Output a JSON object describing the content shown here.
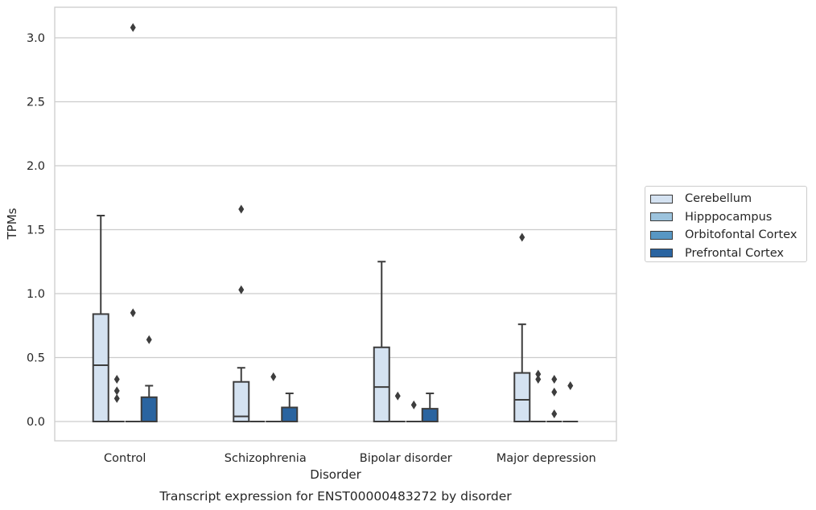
{
  "chart_data": {
    "type": "box",
    "caption": "Transcript expression for ENST00000483272 by disorder",
    "xlabel": "Disorder",
    "ylabel": "TPMs",
    "ylim": [
      -0.15,
      3.25
    ],
    "yticks": [
      "0.0",
      "0.5",
      "1.0",
      "1.5",
      "2.0",
      "2.5",
      "3.0"
    ],
    "grid": "horizontal",
    "legend_position": "right",
    "categories": [
      "Control",
      "Schizophrenia",
      "Bipolar disorder",
      "Major depression"
    ],
    "series": [
      {
        "name": "Cerebellum",
        "color": "#d4e2f1",
        "boxes": [
          {
            "q1": 0.0,
            "median": 0.44,
            "q3": 0.84,
            "whisker_low": 0.0,
            "whisker_high": 1.61,
            "outliers": []
          },
          {
            "q1": 0.0,
            "median": 0.04,
            "q3": 0.31,
            "whisker_low": 0.0,
            "whisker_high": 0.42,
            "outliers": [
              1.03,
              1.66
            ]
          },
          {
            "q1": 0.0,
            "median": 0.27,
            "q3": 0.58,
            "whisker_low": 0.0,
            "whisker_high": 1.25,
            "outliers": []
          },
          {
            "q1": 0.0,
            "median": 0.17,
            "q3": 0.38,
            "whisker_low": 0.0,
            "whisker_high": 0.76,
            "outliers": [
              1.44
            ]
          }
        ]
      },
      {
        "name": "Hipppocampus",
        "color": "#9cc3dd",
        "boxes": [
          {
            "q1": 0.0,
            "median": 0.0,
            "q3": 0.0,
            "whisker_low": 0.0,
            "whisker_high": 0.0,
            "outliers": [
              0.18,
              0.24,
              0.33
            ]
          },
          {
            "q1": 0.0,
            "median": 0.0,
            "q3": 0.0,
            "whisker_low": 0.0,
            "whisker_high": 0.0,
            "outliers": []
          },
          {
            "q1": 0.0,
            "median": 0.0,
            "q3": 0.0,
            "whisker_low": 0.0,
            "whisker_high": 0.0,
            "outliers": [
              0.2
            ]
          },
          {
            "q1": 0.0,
            "median": 0.0,
            "q3": 0.0,
            "whisker_low": 0.0,
            "whisker_high": 0.0,
            "outliers": [
              0.33,
              0.37
            ]
          }
        ]
      },
      {
        "name": "Orbitofontal Cortex",
        "color": "#5897c4",
        "boxes": [
          {
            "q1": 0.0,
            "median": 0.0,
            "q3": 0.0,
            "whisker_low": 0.0,
            "whisker_high": 0.0,
            "outliers": [
              0.85,
              3.08
            ]
          },
          {
            "q1": 0.0,
            "median": 0.0,
            "q3": 0.0,
            "whisker_low": 0.0,
            "whisker_high": 0.0,
            "outliers": [
              0.35
            ]
          },
          {
            "q1": 0.0,
            "median": 0.0,
            "q3": 0.0,
            "whisker_low": 0.0,
            "whisker_high": 0.0,
            "outliers": [
              0.13
            ]
          },
          {
            "q1": 0.0,
            "median": 0.0,
            "q3": 0.0,
            "whisker_low": 0.0,
            "whisker_high": 0.0,
            "outliers": [
              0.06,
              0.23,
              0.33
            ]
          }
        ]
      },
      {
        "name": "Prefrontal Cortex",
        "color": "#2a64a0",
        "boxes": [
          {
            "q1": 0.0,
            "median": 0.0,
            "q3": 0.19,
            "whisker_low": 0.0,
            "whisker_high": 0.28,
            "outliers": [
              0.64
            ]
          },
          {
            "q1": 0.0,
            "median": 0.0,
            "q3": 0.11,
            "whisker_low": 0.0,
            "whisker_high": 0.22,
            "outliers": []
          },
          {
            "q1": 0.0,
            "median": 0.0,
            "q3": 0.1,
            "whisker_low": 0.0,
            "whisker_high": 0.22,
            "outliers": []
          },
          {
            "q1": 0.0,
            "median": 0.0,
            "q3": 0.0,
            "whisker_low": 0.0,
            "whisker_high": 0.0,
            "outliers": [
              0.28
            ]
          }
        ]
      }
    ]
  }
}
